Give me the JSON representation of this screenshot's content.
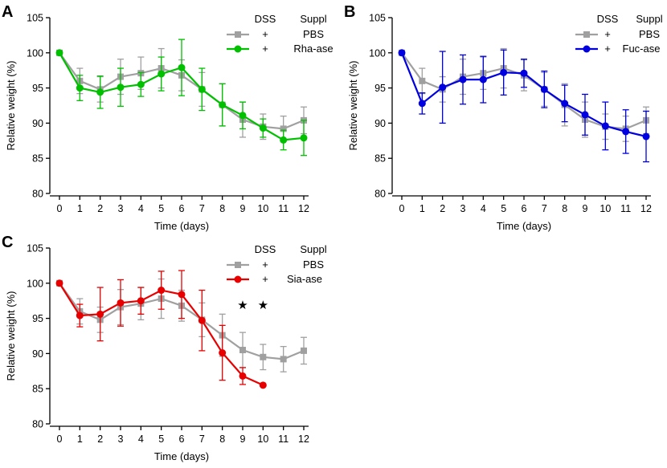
{
  "panels": [
    {
      "letter": "A",
      "legend": {
        "header_dss": "DSS",
        "header_suppl": "Suppl",
        "rows": [
          {
            "dss": "+",
            "suppl": "PBS"
          },
          {
            "dss": "+",
            "suppl": "Rha-ase"
          }
        ]
      }
    },
    {
      "letter": "B",
      "legend": {
        "header_dss": "DSS",
        "header_suppl": "Suppl",
        "rows": [
          {
            "dss": "+",
            "suppl": "PBS"
          },
          {
            "dss": "+",
            "suppl": "Fuc-ase"
          }
        ]
      }
    },
    {
      "letter": "C",
      "legend": {
        "header_dss": "DSS",
        "header_suppl": "Suppl",
        "rows": [
          {
            "dss": "+",
            "suppl": "PBS"
          },
          {
            "dss": "+",
            "suppl": "Sia-ase"
          }
        ]
      }
    }
  ],
  "chart_data": [
    {
      "type": "line",
      "panel": "A",
      "xlabel": "Time (days)",
      "ylabel": "Relative weight (%)",
      "x": [
        0,
        1,
        2,
        3,
        4,
        5,
        6,
        7,
        8,
        9,
        10,
        11,
        12
      ],
      "xticks": [
        "0",
        "1",
        "2",
        "3",
        "4",
        "5",
        "6",
        "7",
        "8",
        "9",
        "10",
        "11",
        "12"
      ],
      "yticks": [
        "80",
        "85",
        "90",
        "95",
        "100",
        "105"
      ],
      "ylim": [
        80,
        105
      ],
      "series": [
        {
          "name": "PBS",
          "color": "#a0a0a0",
          "marker": "square",
          "values": [
            100,
            96.0,
            94.8,
            96.6,
            97.1,
            97.8,
            96.8,
            94.8,
            92.6,
            90.5,
            89.5,
            89.2,
            90.4
          ],
          "errors": [
            0,
            1.8,
            1.8,
            2.5,
            2.3,
            2.8,
            2.2,
            2.4,
            3.0,
            2.5,
            1.8,
            1.8,
            1.9
          ]
        },
        {
          "name": "Rha-ase",
          "color": "#00c000",
          "marker": "circle",
          "values": [
            100,
            95.0,
            94.4,
            95.1,
            95.5,
            97.0,
            97.9,
            94.8,
            92.6,
            91.1,
            89.3,
            87.6,
            87.9
          ],
          "errors": [
            0,
            1.8,
            2.3,
            2.7,
            1.7,
            2.4,
            4.0,
            3.0,
            3.0,
            1.9,
            1.3,
            1.4,
            2.5
          ]
        }
      ]
    },
    {
      "type": "line",
      "panel": "B",
      "xlabel": "Time (days)",
      "ylabel": "Relative weight (%)",
      "x": [
        0,
        1,
        2,
        3,
        4,
        5,
        6,
        7,
        8,
        9,
        10,
        11,
        12
      ],
      "xticks": [
        "0",
        "1",
        "2",
        "3",
        "4",
        "5",
        "6",
        "7",
        "8",
        "9",
        "10",
        "11",
        "12"
      ],
      "yticks": [
        "80",
        "85",
        "90",
        "95",
        "100",
        "105"
      ],
      "ylim": [
        80,
        105
      ],
      "series": [
        {
          "name": "PBS",
          "color": "#a0a0a0",
          "marker": "square",
          "values": [
            100,
            96.0,
            94.8,
            96.6,
            97.1,
            97.8,
            96.8,
            94.8,
            92.6,
            90.5,
            89.5,
            89.2,
            90.4
          ],
          "errors": [
            0,
            1.8,
            1.8,
            2.5,
            2.3,
            2.8,
            2.2,
            2.4,
            3.0,
            2.5,
            1.8,
            1.8,
            1.9
          ]
        },
        {
          "name": "Fuc-ase",
          "color": "#0000e0",
          "marker": "circle",
          "values": [
            100,
            92.8,
            95.1,
            96.2,
            96.2,
            97.2,
            97.1,
            94.8,
            92.8,
            91.2,
            89.6,
            88.8,
            88.1
          ],
          "errors": [
            0,
            1.5,
            5.1,
            3.5,
            3.3,
            3.2,
            2.0,
            2.6,
            2.6,
            2.9,
            3.4,
            3.1,
            3.6
          ]
        }
      ]
    },
    {
      "type": "line",
      "panel": "C",
      "xlabel": "Time (days)",
      "ylabel": "Relative weight (%)",
      "x": [
        0,
        1,
        2,
        3,
        4,
        5,
        6,
        7,
        8,
        9,
        10,
        11,
        12
      ],
      "xticks": [
        "0",
        "1",
        "2",
        "3",
        "4",
        "5",
        "6",
        "7",
        "8",
        "9",
        "10",
        "11",
        "12"
      ],
      "yticks": [
        "80",
        "85",
        "90",
        "95",
        "100",
        "105"
      ],
      "ylim": [
        80,
        105
      ],
      "series": [
        {
          "name": "PBS",
          "color": "#a0a0a0",
          "marker": "square",
          "values": [
            100,
            96.0,
            94.8,
            96.6,
            97.1,
            97.8,
            96.8,
            94.8,
            92.6,
            90.5,
            89.5,
            89.2,
            90.4
          ],
          "errors": [
            0,
            1.8,
            1.8,
            2.5,
            2.3,
            2.8,
            2.2,
            2.4,
            3.0,
            2.5,
            1.8,
            1.8,
            1.9
          ]
        },
        {
          "name": "Sia-ase",
          "color": "#e80000",
          "marker": "circle",
          "values": [
            100,
            95.4,
            95.6,
            97.2,
            97.5,
            99.0,
            98.4,
            94.7,
            90.1,
            86.8,
            85.5,
            null,
            null
          ],
          "errors": [
            0,
            1.6,
            3.8,
            3.3,
            1.9,
            2.7,
            3.4,
            4.3,
            3.9,
            1.2,
            0,
            null,
            null
          ]
        }
      ],
      "annotations": [
        {
          "x": 9,
          "text": "★"
        },
        {
          "x": 10,
          "text": "★"
        }
      ]
    }
  ]
}
